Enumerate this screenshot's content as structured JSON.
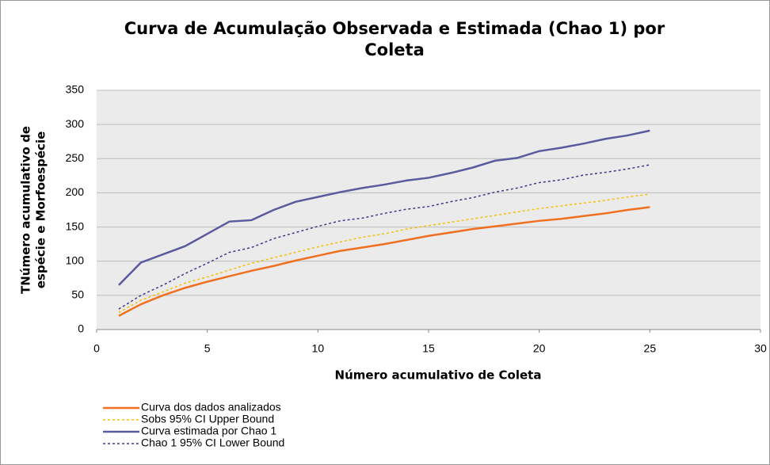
{
  "chart_data": {
    "type": "line",
    "title": [
      "Curva de Acumulação Observada e Estimada (Chao 1) por",
      "Coleta"
    ],
    "x_label": "Número acumulativo de Coleta",
    "y_label": [
      "TNúmero acumulativo de",
      "espécie e Morfoespécie"
    ],
    "x": [
      1,
      2,
      3,
      4,
      5,
      6,
      7,
      8,
      9,
      10,
      11,
      12,
      13,
      14,
      15,
      16,
      17,
      18,
      19,
      20,
      21,
      22,
      23,
      24,
      25
    ],
    "series": [
      {
        "name": "Curva dos dados analizados",
        "color": "#f07020",
        "dash": "solid",
        "values": [
          20,
          37,
          50,
          61,
          70,
          78,
          86,
          93,
          101,
          108,
          115,
          120,
          125,
          131,
          137,
          142,
          147,
          151,
          155,
          159,
          162,
          166,
          170,
          175,
          179
        ]
      },
      {
        "name": "Sobs 95% CI Upper Bound",
        "color": "#f5c000",
        "dash": "dotted",
        "values": [
          25,
          43,
          55,
          68,
          77,
          87,
          97,
          105,
          113,
          121,
          128,
          135,
          140,
          147,
          152,
          157,
          162,
          167,
          172,
          177,
          181,
          185,
          189,
          194,
          198
        ]
      },
      {
        "name": "Curva estimada por Chao 1",
        "color": "#5a5a9e",
        "dash": "solid",
        "values": [
          65,
          98,
          110,
          122,
          140,
          158,
          160,
          175,
          187,
          194,
          201,
          207,
          212,
          218,
          222,
          229,
          237,
          247,
          251,
          261,
          266,
          272,
          279,
          284,
          291
        ]
      },
      {
        "name": "Chao 1 95% CI Lower Bound",
        "color": "#3a3a8a",
        "dash": "dotted",
        "values": [
          30,
          50,
          65,
          82,
          97,
          113,
          120,
          133,
          142,
          151,
          159,
          163,
          170,
          176,
          180,
          187,
          193,
          201,
          207,
          215,
          219,
          226,
          230,
          235,
          241
        ]
      }
    ],
    "xlim": [
      0,
      30
    ],
    "xticks": [
      0,
      5,
      10,
      15,
      20,
      25,
      30
    ],
    "ylim": [
      0,
      350
    ],
    "yticks": [
      0,
      50,
      100,
      150,
      200,
      250,
      300,
      350
    ],
    "grid": true,
    "legend": "bottom-left"
  }
}
